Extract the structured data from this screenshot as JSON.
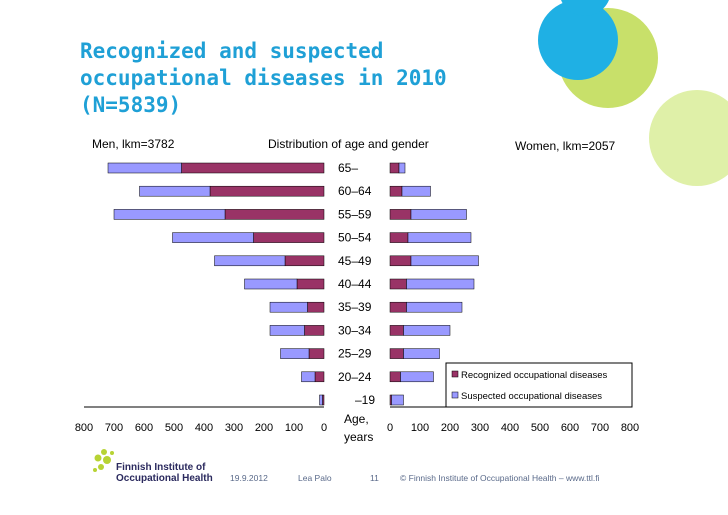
{
  "slide": {
    "title": "Recognized and suspected\noccupational diseases in 2010\n(N=5839)",
    "colors": {
      "title": "#1fa0d6",
      "deco_blue": "#1fb0e4",
      "deco_green": "#c8e06a",
      "deco_lime": "#dff0a8"
    }
  },
  "chart_data": {
    "type": "bar",
    "title": "Distribution of age and gender",
    "men_label": "Men, lkm=3782",
    "women_label": "Women, lkm=2057",
    "categories": [
      "65–",
      "60–64",
      "55–59",
      "50–54",
      "45–49",
      "40–44",
      "35–39",
      "30–34",
      "25–29",
      "20–24",
      "–19"
    ],
    "axis_center_label": "Age,\nyears",
    "xlim": [
      0,
      800
    ],
    "xticks": [
      0,
      100,
      200,
      300,
      400,
      500,
      600,
      700,
      800
    ],
    "series": [
      {
        "name": "Recognized occupational diseases",
        "color": "#993366",
        "men": [
          475,
          380,
          330,
          235,
          130,
          90,
          55,
          65,
          50,
          30,
          5
        ],
        "women": [
          30,
          40,
          70,
          60,
          70,
          55,
          55,
          45,
          45,
          35,
          5
        ]
      },
      {
        "name": "Suspected occupational diseases",
        "color": "#9999ff",
        "men": [
          245,
          235,
          370,
          270,
          235,
          175,
          125,
          115,
          95,
          45,
          10
        ],
        "women": [
          20,
          95,
          185,
          210,
          225,
          225,
          185,
          155,
          120,
          110,
          40
        ]
      }
    ],
    "legend_position": "bottom-right"
  },
  "footer": {
    "date": "19.9.2012",
    "author": "Lea Palo",
    "page": "11",
    "copyright": "© Finnish Institute of Occupational Health   –   www.ttl.fi",
    "logo_line1": "Finnish Institute of",
    "logo_line2": "Occupational Health"
  }
}
